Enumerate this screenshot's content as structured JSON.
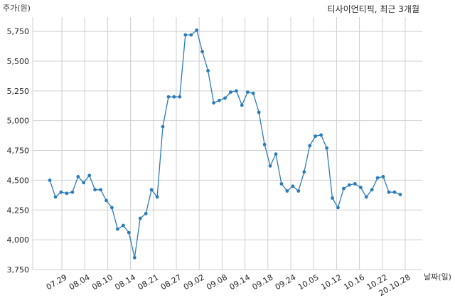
{
  "chart_data": {
    "type": "line",
    "title": "티사이언티픽, 최근 3개월",
    "ylabel": "주가(원)",
    "xlabel": "날짜(일)",
    "ylim": [
      3750,
      5870
    ],
    "yticks": [
      3750,
      4000,
      4250,
      4500,
      4750,
      5000,
      5250,
      5500,
      5750
    ],
    "ytick_labels": [
      "3,750",
      "4,000",
      "4,250",
      "4,500",
      "4,750",
      "5,000",
      "5,250",
      "5,500",
      "5,750"
    ],
    "xtick_labels": [
      "07.29",
      "08.04",
      "08.10",
      "08.14",
      "08.21",
      "08.27",
      "09.02",
      "09.08",
      "09.14",
      "09.18",
      "09.24",
      "10.05",
      "10.12",
      "10.16",
      "10.22",
      "20.10.28"
    ],
    "grid": true,
    "color": "#2b7bba",
    "series": [
      {
        "values": [
          4500,
          4360,
          4400,
          4390,
          4400,
          4530,
          4480,
          4540,
          4420,
          4420,
          4330,
          4270,
          4090,
          4120,
          4060,
          3850,
          4180,
          4220,
          4420,
          4360,
          4950,
          5200,
          5200,
          5200,
          5720,
          5720,
          5760,
          5580,
          5420,
          5150,
          5170,
          5190,
          5240,
          5250,
          5130,
          5240,
          5230,
          5070,
          4800,
          4620,
          4720,
          4470,
          4410,
          4450,
          4410,
          4570,
          4790,
          4870,
          4880,
          4770,
          4350,
          4270,
          4430,
          4460,
          4470,
          4440,
          4360,
          4420,
          4520,
          4530,
          4400,
          4400,
          4380
        ]
      }
    ]
  }
}
